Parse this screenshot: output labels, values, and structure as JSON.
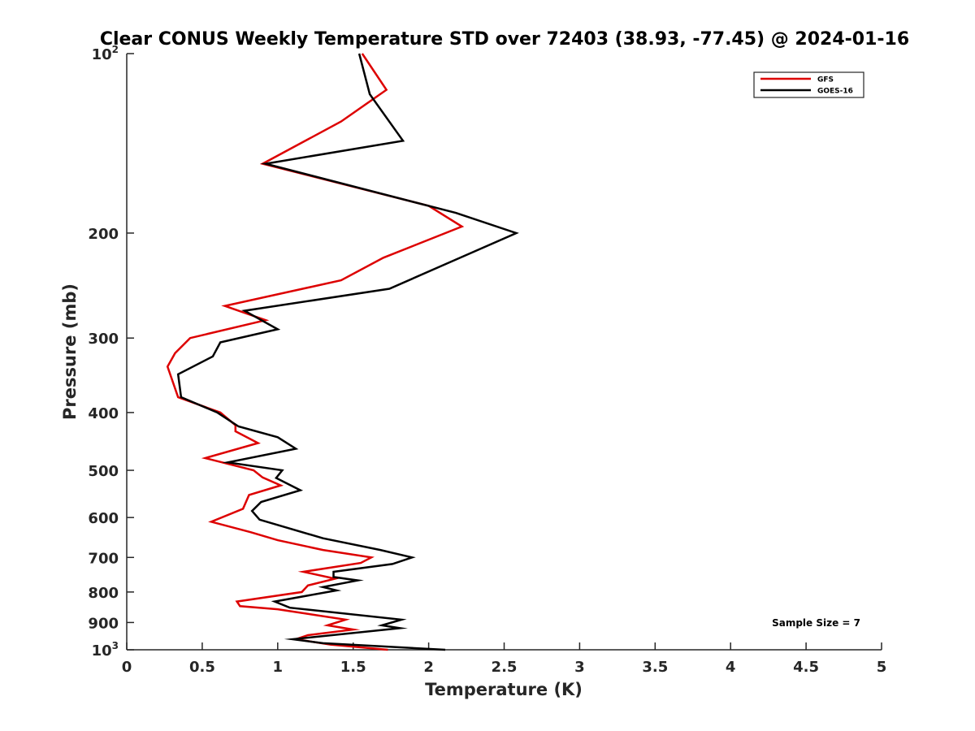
{
  "chart_data": {
    "type": "line",
    "title": "Clear CONUS Weekly Temperature STD over 72403 (38.93, -77.45) @ 2024-01-16",
    "xlabel": "Temperature (K)",
    "ylabel": "Pressure (mb)",
    "xlim": [
      0,
      5
    ],
    "ylim": [
      100,
      1000
    ],
    "y_scale": "log",
    "y_reversed": true,
    "grid": false,
    "legend_position": "top-right",
    "x_ticks": [
      "0",
      "0.5",
      "1",
      "1.5",
      "2",
      "2.5",
      "3",
      "3.5",
      "4",
      "4.5",
      "5"
    ],
    "y_ticks": [
      {
        "value": 100,
        "label": "10",
        "sup": "2"
      },
      {
        "value": 200,
        "label": "200",
        "sup": ""
      },
      {
        "value": 300,
        "label": "300",
        "sup": ""
      },
      {
        "value": 400,
        "label": "400",
        "sup": ""
      },
      {
        "value": 500,
        "label": "500",
        "sup": ""
      },
      {
        "value": 600,
        "label": "600",
        "sup": ""
      },
      {
        "value": 700,
        "label": "700",
        "sup": ""
      },
      {
        "value": 800,
        "label": "800",
        "sup": ""
      },
      {
        "value": 900,
        "label": "900",
        "sup": ""
      },
      {
        "value": 1000,
        "label": "10",
        "sup": "3"
      }
    ],
    "series": [
      {
        "name": "GFS",
        "color": "#dd0000",
        "points": [
          [
            1.56,
            100
          ],
          [
            1.72,
            115
          ],
          [
            1.42,
            130
          ],
          [
            0.9,
            153
          ],
          [
            2.0,
            180
          ],
          [
            2.22,
            195
          ],
          [
            1.7,
            220
          ],
          [
            1.42,
            240
          ],
          [
            0.65,
            265
          ],
          [
            0.92,
            280
          ],
          [
            0.42,
            300
          ],
          [
            0.32,
            318
          ],
          [
            0.27,
            335
          ],
          [
            0.34,
            377
          ],
          [
            0.62,
            400
          ],
          [
            0.72,
            420
          ],
          [
            0.72,
            430
          ],
          [
            0.87,
            450
          ],
          [
            0.52,
            477
          ],
          [
            0.84,
            500
          ],
          [
            0.9,
            514
          ],
          [
            1.02,
            530
          ],
          [
            0.81,
            550
          ],
          [
            0.77,
            580
          ],
          [
            0.56,
            610
          ],
          [
            0.82,
            635
          ],
          [
            1.0,
            655
          ],
          [
            1.3,
            680
          ],
          [
            1.62,
            700
          ],
          [
            1.55,
            715
          ],
          [
            1.17,
            740
          ],
          [
            1.38,
            760
          ],
          [
            1.2,
            780
          ],
          [
            1.16,
            800
          ],
          [
            0.73,
            830
          ],
          [
            0.75,
            845
          ],
          [
            1.0,
            855
          ],
          [
            1.45,
            890
          ],
          [
            1.33,
            910
          ],
          [
            1.5,
            925
          ],
          [
            1.2,
            945
          ],
          [
            1.12,
            960
          ],
          [
            1.35,
            980
          ],
          [
            1.73,
            1000
          ]
        ]
      },
      {
        "name": "GOES-16",
        "color": "#000000",
        "points": [
          [
            1.54,
            100
          ],
          [
            1.61,
            117
          ],
          [
            1.83,
            140
          ],
          [
            0.92,
            153
          ],
          [
            2.18,
            185
          ],
          [
            2.58,
            200
          ],
          [
            2.12,
            225
          ],
          [
            1.74,
            248
          ],
          [
            0.78,
            270
          ],
          [
            1.0,
            290
          ],
          [
            0.62,
            305
          ],
          [
            0.57,
            322
          ],
          [
            0.34,
            345
          ],
          [
            0.36,
            377
          ],
          [
            0.6,
            400
          ],
          [
            0.74,
            422
          ],
          [
            1.0,
            440
          ],
          [
            1.12,
            460
          ],
          [
            0.67,
            485
          ],
          [
            1.03,
            500
          ],
          [
            0.99,
            515
          ],
          [
            1.15,
            540
          ],
          [
            0.89,
            565
          ],
          [
            0.83,
            585
          ],
          [
            0.88,
            605
          ],
          [
            1.3,
            650
          ],
          [
            1.68,
            680
          ],
          [
            1.89,
            700
          ],
          [
            1.76,
            718
          ],
          [
            1.37,
            740
          ],
          [
            1.37,
            755
          ],
          [
            1.53,
            765
          ],
          [
            1.3,
            785
          ],
          [
            1.39,
            795
          ],
          [
            0.98,
            830
          ],
          [
            1.08,
            850
          ],
          [
            1.82,
            890
          ],
          [
            1.69,
            910
          ],
          [
            1.81,
            920
          ],
          [
            1.1,
            960
          ],
          [
            1.3,
            975
          ],
          [
            2.11,
            1000
          ]
        ]
      }
    ],
    "annotations": [
      "Sample Size = 7"
    ]
  }
}
